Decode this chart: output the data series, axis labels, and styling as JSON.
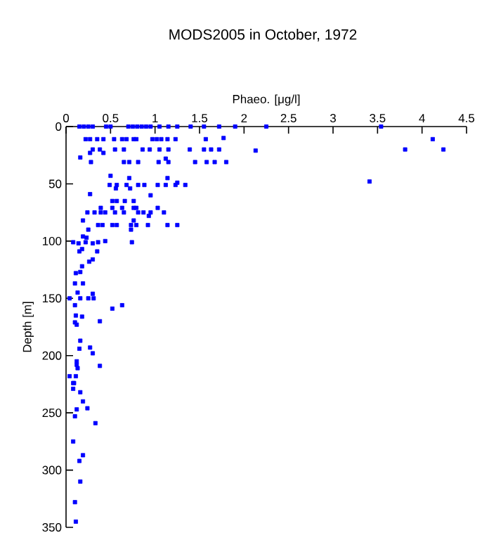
{
  "chart_data": {
    "type": "scatter",
    "title": "MODS2005 in October, 1972",
    "xlabel": "Phaeo. [μg/l]",
    "ylabel": "Depth [m]",
    "x": [
      0.15,
      0.2,
      0.25,
      0.3,
      0.45,
      0.5,
      0.7,
      0.75,
      0.8,
      0.85,
      0.9,
      0.95,
      1.05,
      1.15,
      1.25,
      1.4,
      1.55,
      1.72,
      1.9,
      2.25,
      3.54,
      0.22,
      0.27,
      0.35,
      0.42,
      0.54,
      0.63,
      0.68,
      0.76,
      0.79,
      0.97,
      1.02,
      1.07,
      1.14,
      1.23,
      1.57,
      1.77,
      4.12,
      0.3,
      0.38,
      0.55,
      0.65,
      0.86,
      0.94,
      1.05,
      1.15,
      1.39,
      1.55,
      1.63,
      1.72,
      2.13,
      3.81,
      4.24,
      0.27,
      0.42,
      0.16,
      0.28,
      0.65,
      0.71,
      0.81,
      1.04,
      1.15,
      1.45,
      1.58,
      1.67,
      1.8,
      1.12,
      0.5,
      0.71,
      1.14,
      0.49,
      0.57,
      0.68,
      0.81,
      0.88,
      1.03,
      1.12,
      1.23,
      1.34,
      3.41,
      1.25,
      0.56,
      0.72,
      0.27,
      0.95,
      0.52,
      0.57,
      0.66,
      0.76,
      0.39,
      0.52,
      0.63,
      0.76,
      0.79,
      1.03,
      0.24,
      0.32,
      0.39,
      0.44,
      0.55,
      0.65,
      0.81,
      0.87,
      0.95,
      1.1,
      0.93,
      0.76,
      0.19,
      0.36,
      0.41,
      0.52,
      0.57,
      0.73,
      0.79,
      0.92,
      1.14,
      1.25,
      0.25,
      0.73,
      0.19,
      0.23,
      0.08,
      0.14,
      0.22,
      0.3,
      0.36,
      0.44,
      0.74,
      0.18,
      0.15,
      0.35,
      0.3,
      0.26,
      0.18,
      0.11,
      0.16,
      0.1,
      0.19,
      0.13,
      0.3,
      0.04,
      0.16,
      0.25,
      0.31,
      0.1,
      0.63,
      0.52,
      0.11,
      0.18,
      0.38,
      0.1,
      0.12,
      0.16,
      0.15,
      0.27,
      0.3,
      0.12,
      0.38,
      0.12,
      0.13,
      0.04,
      0.11,
      0.08,
      0.16,
      0.09,
      0.08,
      0.19,
      0.24,
      0.12,
      0.1,
      0.33,
      0.08,
      0.19,
      0.15,
      0.16,
      0.1,
      0.11
    ],
    "values": [
      0,
      0,
      0,
      0,
      0,
      0,
      0,
      0,
      0,
      0,
      0,
      0,
      0,
      0,
      0,
      0,
      0,
      0,
      0,
      0,
      0,
      11,
      11,
      11,
      11,
      11,
      11,
      11,
      11,
      11,
      11,
      11,
      11,
      11,
      11,
      11,
      10,
      11,
      20,
      20,
      20,
      20,
      20,
      20,
      20,
      20,
      20,
      20,
      20,
      20,
      21,
      20,
      20,
      23,
      23,
      27,
      31,
      31,
      31,
      31,
      31,
      31,
      31,
      31,
      31,
      31,
      28,
      43,
      45,
      45,
      51,
      51,
      51,
      51,
      51,
      51,
      51,
      51,
      51,
      48,
      49,
      54,
      54,
      59,
      60,
      65,
      65,
      65,
      65,
      71,
      71,
      71,
      71,
      71,
      71,
      75,
      75,
      75,
      75,
      75,
      75,
      75,
      75,
      75,
      75,
      78,
      82,
      82,
      86,
      86,
      86,
      86,
      86,
      86,
      86,
      86,
      86,
      90,
      90,
      96,
      97,
      101,
      102,
      101,
      102,
      101,
      100,
      101,
      107,
      109,
      109,
      116,
      118,
      122,
      128,
      127,
      137,
      137,
      145,
      146,
      150,
      150,
      150,
      150,
      156,
      156,
      159,
      165,
      166,
      170,
      171,
      173,
      187,
      194,
      193,
      198,
      205,
      209,
      208,
      211,
      218,
      218,
      224,
      232,
      224,
      229,
      240,
      246,
      247,
      253,
      259,
      275,
      287,
      292,
      310,
      328,
      345
    ],
    "color": "#0000ff",
    "marker": "square",
    "xlim": [
      0,
      4.5
    ],
    "xticks": [
      0,
      0.5,
      1,
      1.5,
      2,
      2.5,
      3,
      3.5,
      4,
      4.5
    ],
    "ylim": [
      350,
      0
    ],
    "yticks": [
      0,
      50,
      100,
      150,
      200,
      250,
      300,
      350
    ]
  }
}
